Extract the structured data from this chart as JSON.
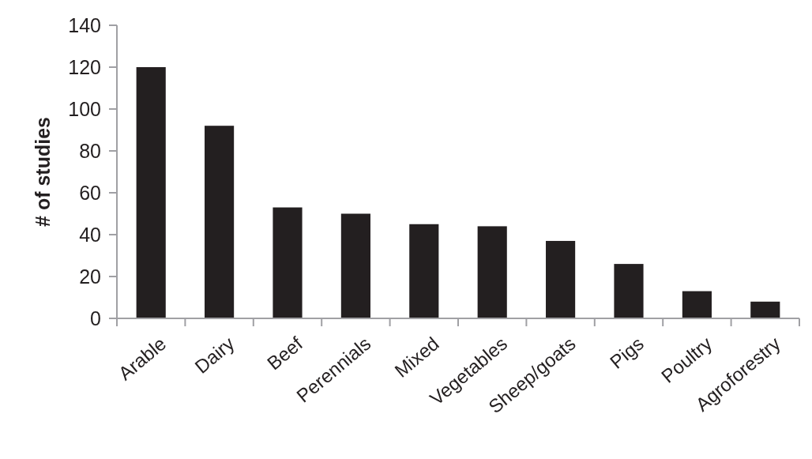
{
  "chart_data": {
    "type": "bar",
    "ylabel": "# of studies",
    "categories": [
      "Arable",
      "Dairy",
      "Beef",
      "Perennials",
      "Mixed",
      "Vegetables",
      "Sheep/goats",
      "Pigs",
      "Poultry",
      "Agroforestry"
    ],
    "values": [
      120,
      92,
      53,
      50,
      45,
      44,
      37,
      26,
      13,
      8
    ],
    "color": "#231f20",
    "ylim": [
      0,
      140
    ],
    "yticks": [
      0,
      20,
      40,
      60,
      80,
      100,
      120,
      140
    ]
  }
}
